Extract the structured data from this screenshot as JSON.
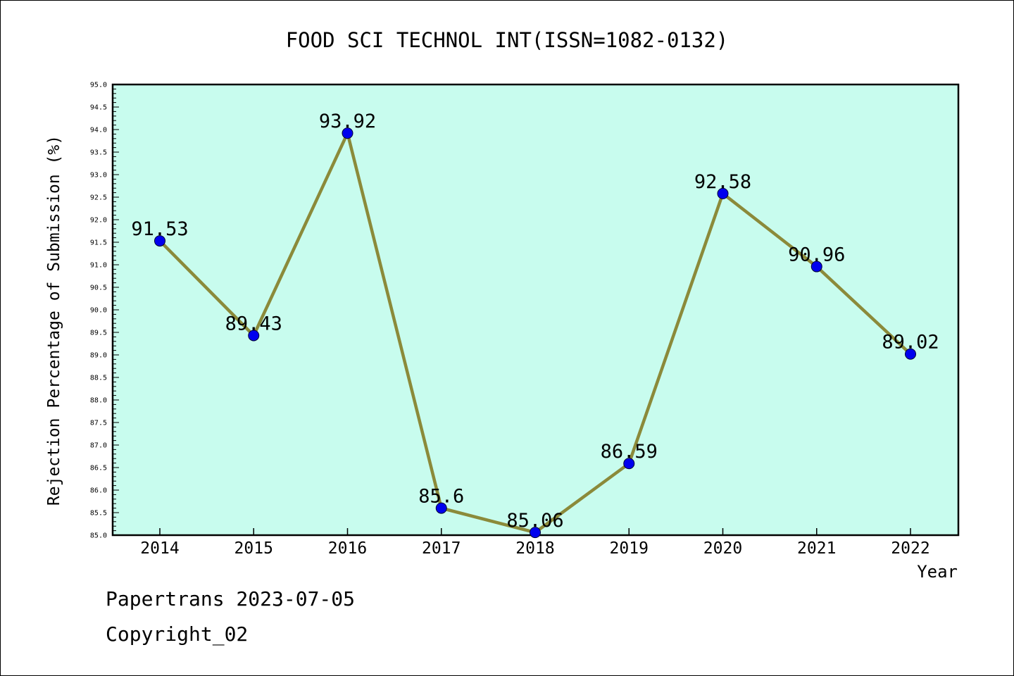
{
  "chart_data": {
    "type": "line",
    "title": "FOOD SCI TECHNOL INT(ISSN=1082-0132)",
    "xlabel": "Year",
    "ylabel": "Rejection Percentage of Submission (%)",
    "categories": [
      "2014",
      "2015",
      "2016",
      "2017",
      "2018",
      "2019",
      "2020",
      "2021",
      "2022"
    ],
    "values": [
      91.53,
      89.43,
      93.92,
      85.6,
      85.06,
      86.59,
      92.58,
      90.96,
      89.02
    ],
    "value_labels": [
      "91.53",
      "89.43",
      "93.92",
      "85.6",
      "85.06",
      "86.59",
      "92.58",
      "90.96",
      "89.02"
    ],
    "ylim": [
      85.0,
      95.0
    ],
    "y_ticks": [
      "85.0",
      "85.5",
      "86.0",
      "86.5",
      "87.0",
      "87.5",
      "88.0",
      "88.5",
      "89.0",
      "89.5",
      "90.0",
      "90.5",
      "91.0",
      "91.5",
      "92.0",
      "92.5",
      "93.0",
      "93.5",
      "94.0",
      "94.5",
      "95.0"
    ],
    "grid": false,
    "legend": "none",
    "colors": {
      "plot_background": "#c8fcee",
      "line": "#8b8a3a",
      "marker": "#0000ee",
      "axis": "#000000"
    }
  },
  "footer": {
    "line1": "Papertrans 2023-07-05",
    "line2": "Copyright_02"
  }
}
